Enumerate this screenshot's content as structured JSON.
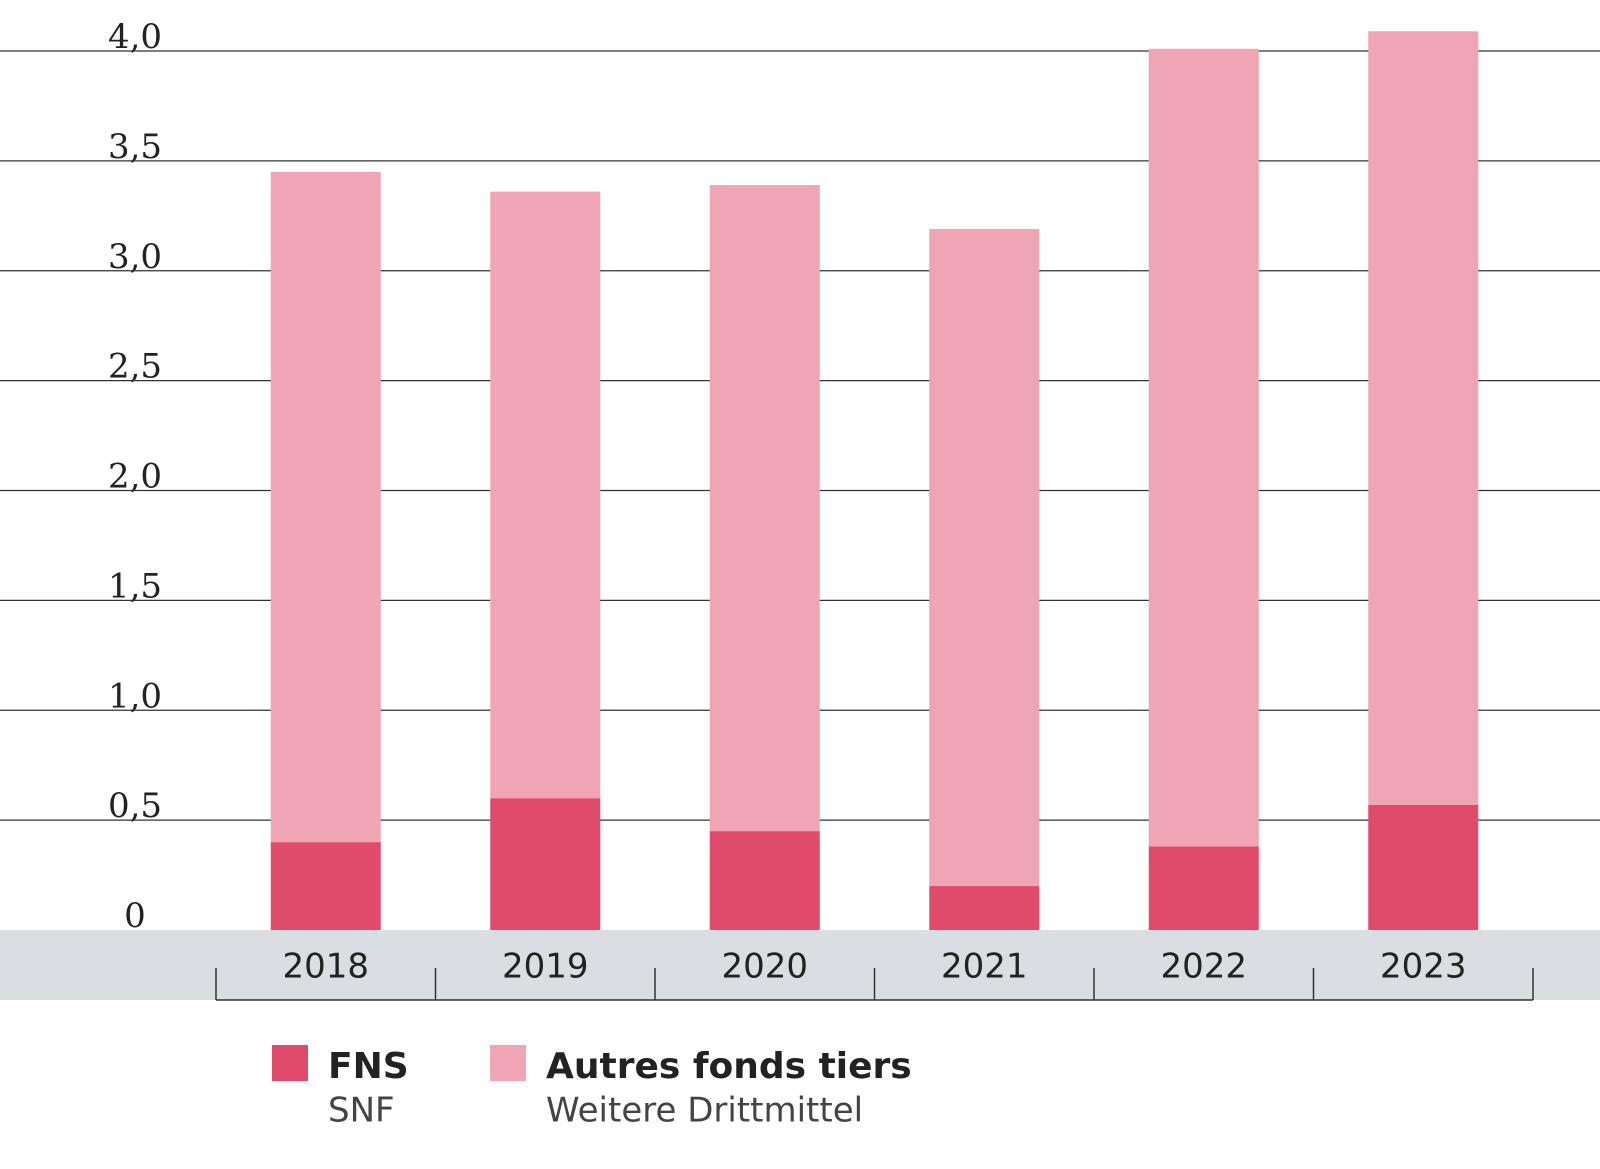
{
  "chart_data": {
    "type": "stacked_bar",
    "categories": [
      "2018",
      "2019",
      "2020",
      "2021",
      "2022",
      "2023"
    ],
    "series": [
      {
        "name": "FNS",
        "subname": "SNF",
        "color": "#e04a6b",
        "values": [
          0.4,
          0.6,
          0.45,
          0.2,
          0.38,
          0.57
        ]
      },
      {
        "name": "Autres fonds tiers",
        "subname": "Weitere Drittmittel",
        "color": "#f0a5b4",
        "values": [
          3.05,
          2.76,
          2.94,
          2.99,
          3.63,
          3.52
        ]
      }
    ],
    "ylim": [
      0,
      4.2
    ],
    "yticks": [
      0,
      {
        "value": 0.5,
        "label": "0,5"
      },
      {
        "value": 1.0,
        "label": "1,0"
      },
      {
        "value": 1.5,
        "label": "1,5"
      },
      {
        "value": 2.0,
        "label": "2,0"
      },
      {
        "value": 2.5,
        "label": "2,5"
      },
      {
        "value": 3.0,
        "label": "3,0"
      },
      {
        "value": 3.5,
        "label": "3,5"
      },
      {
        "value": 4.0,
        "label": "4,0"
      }
    ],
    "grid": true
  }
}
